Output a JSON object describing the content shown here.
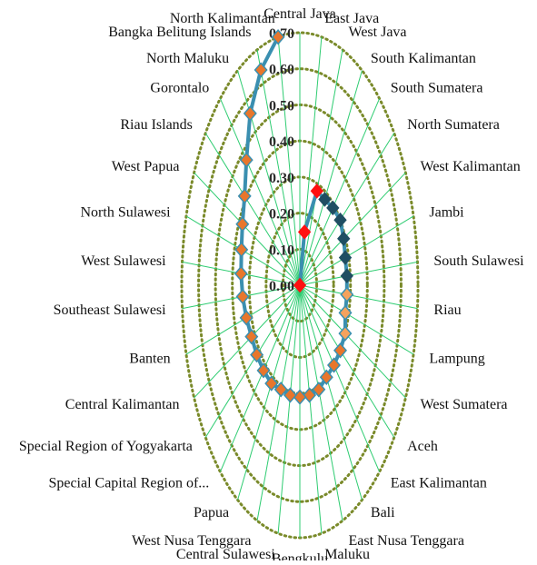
{
  "chart_data": {
    "type": "radar",
    "categories": [
      "Central Java",
      "East Java",
      "West Java",
      "South Kalimantan",
      "South Sumatera",
      "North Sumatera",
      "West Kalimantan",
      "Jambi",
      "South Sulawesi",
      "Riau",
      "Lampung",
      "West Sumatera",
      "Aceh",
      "East Kalimantan",
      "Bali",
      "East Nusa Tenggara",
      "Maluku",
      "Bengkulu",
      "Central Sulawesi",
      "West Nusa Tenggara",
      "Papua",
      "Special Capital Region of...",
      "Special Region of Yogyakarta",
      "Central Kalimantan",
      "Banten",
      "Southeast Sulawesi",
      "West Sulawesi",
      "North Sulawesi",
      "West Papua",
      "Riau Islands",
      "Gorontalo",
      "North Maluku",
      "Bangka Belitung Islands",
      "North Kalimantan"
    ],
    "values": [
      0.0,
      0.15,
      0.28,
      0.28,
      0.29,
      0.3,
      0.29,
      0.28,
      0.28,
      0.28,
      0.28,
      0.3,
      0.3,
      0.3,
      0.3,
      0.31,
      0.31,
      0.31,
      0.31,
      0.31,
      0.32,
      0.32,
      0.32,
      0.32,
      0.33,
      0.34,
      0.35,
      0.36,
      0.38,
      0.41,
      0.47,
      0.56,
      0.64,
      0.7
    ],
    "marker_groups": [
      "red",
      "red",
      "red",
      "dark",
      "dark",
      "dark",
      "dark",
      "dark",
      "dark",
      "light-orange",
      "light-orange",
      "light-orange",
      "orange",
      "orange",
      "orange",
      "orange",
      "orange",
      "orange",
      "orange",
      "orange",
      "orange",
      "orange",
      "orange",
      "orange",
      "orange",
      "orange",
      "orange",
      "orange",
      "orange",
      "orange",
      "orange",
      "orange",
      "orange",
      "orange"
    ],
    "rlim": [
      0,
      0.7
    ],
    "rticks": [
      "0.00",
      "0.10",
      "0.20",
      "0.30",
      "0.40",
      "0.50",
      "0.60",
      "0.70"
    ],
    "grid": true,
    "legend": "none",
    "colors": {
      "series_line": "#3a8fb0",
      "spoke": "#2ecc71",
      "grid_ring": "#7a8a2a",
      "marker_red": "#ff1010",
      "marker_dark": "#1f4e63",
      "marker_light_orange": "#f5a25d",
      "marker_orange": "#e8762c",
      "marker_outline": "#3a8fb0"
    }
  }
}
